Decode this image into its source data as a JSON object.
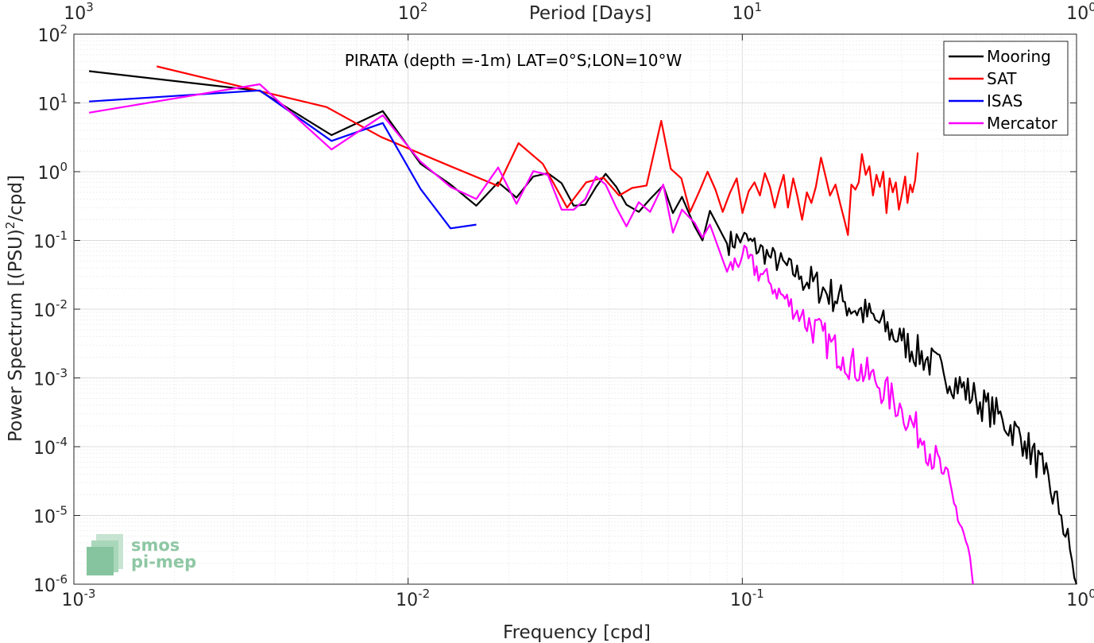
{
  "chart_data": {
    "type": "line",
    "title": "PIRATA (depth =-1m) LAT=0°S;LON=10°W",
    "xlabel": "Frequency [cpd]",
    "ylabel": "Power Spectrum [(PSU)",
    "ylabel_sup": "2",
    "ylabel_tail": "/cpd]",
    "top_xlabel": "Period [Days]",
    "xscale": "log",
    "yscale": "log",
    "xlim": [
      0.001,
      1
    ],
    "ylim": [
      1e-06,
      100
    ],
    "grid": true,
    "legend_position": "top-right",
    "x_ticks": [
      {
        "value": 0.001,
        "base": "10",
        "exp": "-3"
      },
      {
        "value": 0.01,
        "base": "10",
        "exp": "-2"
      },
      {
        "value": 0.1,
        "base": "10",
        "exp": "-1"
      },
      {
        "value": 1,
        "base": "10",
        "exp": "0"
      }
    ],
    "top_ticks": [
      {
        "value": 0.001,
        "base": "10",
        "exp": "3"
      },
      {
        "value": 0.01,
        "base": "10",
        "exp": "2"
      },
      {
        "value": 0.1,
        "base": "10",
        "exp": "1"
      },
      {
        "value": 1,
        "base": "10",
        "exp": "0"
      }
    ],
    "y_ticks": [
      {
        "value": 100,
        "base": "10",
        "exp": "2"
      },
      {
        "value": 10,
        "base": "10",
        "exp": "1"
      },
      {
        "value": 1,
        "base": "10",
        "exp": "0"
      },
      {
        "value": 0.1,
        "base": "10",
        "exp": "-1"
      },
      {
        "value": 0.01,
        "base": "10",
        "exp": "-2"
      },
      {
        "value": 0.001,
        "base": "10",
        "exp": "-3"
      },
      {
        "value": 0.0001,
        "base": "10",
        "exp": "-4"
      },
      {
        "value": 1e-05,
        "base": "10",
        "exp": "-5"
      },
      {
        "value": 1e-06,
        "base": "10",
        "exp": "-6"
      }
    ],
    "series": [
      {
        "name": "Mooring",
        "color": "#000000",
        "noisy": true,
        "anchors": [
          [
            0.00111,
            29
          ],
          [
            0.0036,
            15
          ],
          [
            0.0059,
            3.4
          ],
          [
            0.0084,
            7.6
          ],
          [
            0.0109,
            1.3
          ],
          [
            0.0134,
            0.65
          ],
          [
            0.016,
            0.32
          ],
          [
            0.0186,
            0.7
          ],
          [
            0.0211,
            0.42
          ],
          [
            0.0237,
            0.85
          ],
          [
            0.0262,
            0.95
          ],
          [
            0.0288,
            0.68
          ],
          [
            0.0313,
            0.32
          ],
          [
            0.0339,
            0.33
          ],
          [
            0.0365,
            0.6
          ],
          [
            0.039,
            0.93
          ],
          [
            0.042,
            0.6
          ],
          [
            0.045,
            0.33
          ],
          [
            0.049,
            0.26
          ],
          [
            0.053,
            0.4
          ],
          [
            0.058,
            0.63
          ],
          [
            0.062,
            0.25
          ],
          [
            0.066,
            0.43
          ],
          [
            0.072,
            0.16
          ],
          [
            0.076,
            0.1
          ],
          [
            0.08,
            0.27
          ],
          [
            0.09,
            0.09
          ],
          [
            0.1,
            0.11
          ],
          [
            0.12,
            0.06
          ],
          [
            0.15,
            0.03
          ],
          [
            0.2,
            0.013
          ],
          [
            0.25,
            0.007
          ],
          [
            0.3,
            0.0035
          ],
          [
            0.4,
            0.0012
          ],
          [
            0.5,
            0.0005
          ],
          [
            0.6,
            0.00025
          ],
          [
            0.7,
            0.00012
          ],
          [
            0.8,
            4e-05
          ],
          [
            0.9,
            1e-05
          ],
          [
            0.97,
            2.2e-06
          ],
          [
            1.0,
            1e-06
          ]
        ]
      },
      {
        "name": "SAT",
        "color": "#ff0000",
        "noisy": false,
        "anchors": [
          [
            0.00177,
            34
          ],
          [
            0.0057,
            8.7
          ],
          [
            0.0083,
            3.2
          ],
          [
            0.0134,
            1.2
          ],
          [
            0.0186,
            0.62
          ],
          [
            0.0214,
            2.6
          ],
          [
            0.0253,
            1.3
          ],
          [
            0.0299,
            0.3
          ],
          [
            0.0341,
            0.7
          ],
          [
            0.0384,
            0.82
          ],
          [
            0.0428,
            0.45
          ],
          [
            0.0468,
            0.58
          ],
          [
            0.0517,
            0.63
          ],
          [
            0.0572,
            5.5
          ],
          [
            0.0611,
            1.1
          ],
          [
            0.0657,
            0.8
          ],
          [
            0.0698,
            0.26
          ],
          [
            0.0744,
            0.52
          ],
          [
            0.0787,
            1.0
          ],
          [
            0.0831,
            0.55
          ],
          [
            0.0874,
            0.26
          ],
          [
            0.0918,
            0.49
          ],
          [
            0.0962,
            0.8
          ],
          [
            0.1001,
            0.25
          ],
          [
            0.1045,
            0.52
          ],
          [
            0.1088,
            0.7
          ],
          [
            0.1129,
            0.45
          ],
          [
            0.1168,
            0.95
          ],
          [
            0.121,
            0.6
          ],
          [
            0.125,
            0.3
          ],
          [
            0.129,
            0.55
          ],
          [
            0.133,
            0.9
          ],
          [
            0.137,
            0.3
          ],
          [
            0.142,
            0.8
          ],
          [
            0.146,
            0.45
          ],
          [
            0.151,
            0.2
          ],
          [
            0.156,
            0.5
          ],
          [
            0.161,
            0.35
          ],
          [
            0.166,
            0.6
          ],
          [
            0.172,
            1.6
          ],
          [
            0.178,
            0.8
          ],
          [
            0.183,
            0.45
          ],
          [
            0.19,
            0.65
          ],
          [
            0.196,
            0.35
          ],
          [
            0.203,
            0.18
          ],
          [
            0.207,
            0.12
          ],
          [
            0.212,
            0.65
          ],
          [
            0.218,
            0.55
          ],
          [
            0.223,
            0.7
          ],
          [
            0.228,
            1.8
          ],
          [
            0.234,
            0.9
          ],
          [
            0.24,
            1.2
          ],
          [
            0.246,
            0.45
          ],
          [
            0.252,
            0.9
          ],
          [
            0.258,
            0.6
          ],
          [
            0.264,
            1.0
          ],
          [
            0.27,
            0.25
          ],
          [
            0.276,
            0.8
          ],
          [
            0.282,
            0.5
          ],
          [
            0.288,
            0.7
          ],
          [
            0.294,
            0.28
          ],
          [
            0.3,
            0.45
          ],
          [
            0.307,
            0.85
          ],
          [
            0.312,
            0.35
          ],
          [
            0.318,
            0.65
          ],
          [
            0.323,
            0.5
          ],
          [
            0.329,
            0.75
          ],
          [
            0.335,
            1.9
          ]
        ]
      },
      {
        "name": "ISAS",
        "color": "#0000ff",
        "noisy": false,
        "anchors": [
          [
            0.00111,
            10.5
          ],
          [
            0.0036,
            15.2
          ],
          [
            0.0059,
            2.8
          ],
          [
            0.0084,
            5.1
          ],
          [
            0.0109,
            0.56
          ],
          [
            0.0134,
            0.15
          ],
          [
            0.016,
            0.17
          ]
        ]
      },
      {
        "name": "Mercator",
        "color": "#ff00ff",
        "noisy": true,
        "anchors": [
          [
            0.00111,
            7.2
          ],
          [
            0.0036,
            18.7
          ],
          [
            0.0059,
            2.1
          ],
          [
            0.0084,
            6.6
          ],
          [
            0.0109,
            1.4
          ],
          [
            0.0134,
            0.6
          ],
          [
            0.016,
            0.4
          ],
          [
            0.0186,
            1.15
          ],
          [
            0.0211,
            0.34
          ],
          [
            0.0237,
            1.02
          ],
          [
            0.0262,
            0.9
          ],
          [
            0.0288,
            0.28
          ],
          [
            0.0313,
            0.28
          ],
          [
            0.0339,
            0.4
          ],
          [
            0.0365,
            0.85
          ],
          [
            0.039,
            0.65
          ],
          [
            0.042,
            0.3
          ],
          [
            0.045,
            0.16
          ],
          [
            0.049,
            0.36
          ],
          [
            0.053,
            0.26
          ],
          [
            0.058,
            0.65
          ],
          [
            0.062,
            0.13
          ],
          [
            0.066,
            0.28
          ],
          [
            0.072,
            0.18
          ],
          [
            0.076,
            0.11
          ],
          [
            0.08,
            0.17
          ],
          [
            0.09,
            0.035
          ],
          [
            0.1,
            0.06
          ],
          [
            0.12,
            0.025
          ],
          [
            0.15,
            0.008
          ],
          [
            0.2,
            0.002
          ],
          [
            0.25,
            0.0009
          ],
          [
            0.3,
            0.00035
          ],
          [
            0.35,
            0.00012
          ],
          [
            0.4,
            4e-05
          ],
          [
            0.43,
            1.5e-05
          ],
          [
            0.46,
            5.5e-06
          ],
          [
            0.48,
            2.5e-06
          ],
          [
            0.49,
            1e-06
          ]
        ]
      }
    ]
  },
  "logo": {
    "line1": "smos",
    "line2": "pi-mep"
  }
}
